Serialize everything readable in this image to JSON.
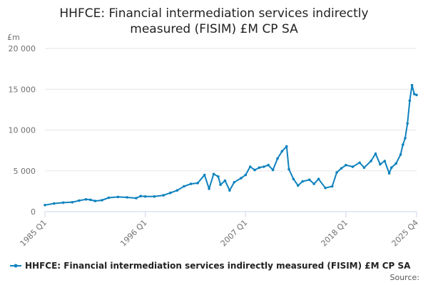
{
  "chart_data": {
    "type": "line",
    "title_line1": "HHFCE: Financial intermediation services indirectly",
    "title_line2": "measured (FISIM) £M CP SA",
    "ylabel": "£m",
    "ylim": [
      0,
      20000
    ],
    "yticks": [
      0,
      5000,
      10000,
      15000,
      20000
    ],
    "ytick_labels": [
      "0",
      "5 000",
      "10 000",
      "15 000",
      "20 000"
    ],
    "xrange": [
      "1985 Q1",
      "2025 Q4"
    ],
    "xticks": [
      "1985 Q1",
      "1996 Q1",
      "2007 Q1",
      "2018 Q1",
      "2025 Q4"
    ],
    "grid": true,
    "legend_position": "bottom",
    "color": "#0f82be",
    "source_label": "Source:",
    "series": [
      {
        "name": "HHFCE: Financial intermediation services indirectly measured (FISIM) £M CP SA",
        "points": [
          [
            "1985 Q1",
            800
          ],
          [
            "1986 Q1",
            1000
          ],
          [
            "1987 Q1",
            1100
          ],
          [
            "1988 Q1",
            1150
          ],
          [
            "1988 Q4",
            1350
          ],
          [
            "1989 Q3",
            1500
          ],
          [
            "1990 Q1",
            1450
          ],
          [
            "1990 Q3",
            1300
          ],
          [
            "1991 Q2",
            1400
          ],
          [
            "1992 Q1",
            1700
          ],
          [
            "1993 Q1",
            1800
          ],
          [
            "1994 Q1",
            1750
          ],
          [
            "1995 Q1",
            1650
          ],
          [
            "1995 Q3",
            1900
          ],
          [
            "1996 Q1",
            1850
          ],
          [
            "1997 Q1",
            1850
          ],
          [
            "1998 Q1",
            2000
          ],
          [
            "1998 Q4",
            2300
          ],
          [
            "1999 Q3",
            2600
          ],
          [
            "2000 Q2",
            3100
          ],
          [
            "2001 Q1",
            3400
          ],
          [
            "2001 Q4",
            3500
          ],
          [
            "2002 Q3",
            4500
          ],
          [
            "2003 Q1",
            2800
          ],
          [
            "2003 Q3",
            4600
          ],
          [
            "2004 Q1",
            4300
          ],
          [
            "2004 Q2",
            3300
          ],
          [
            "2004 Q4",
            3800
          ],
          [
            "2005 Q2",
            2600
          ],
          [
            "2005 Q4",
            3600
          ],
          [
            "2006 Q3",
            4100
          ],
          [
            "2007 Q1",
            4500
          ],
          [
            "2007 Q3",
            5500
          ],
          [
            "2008 Q1",
            5100
          ],
          [
            "2008 Q3",
            5400
          ],
          [
            "2009 Q1",
            5500
          ],
          [
            "2009 Q3",
            5700
          ],
          [
            "2010 Q1",
            5100
          ],
          [
            "2010 Q3",
            6500
          ],
          [
            "2011 Q1",
            7400
          ],
          [
            "2011 Q3",
            8000
          ],
          [
            "2011 Q4",
            5200
          ],
          [
            "2012 Q2",
            4000
          ],
          [
            "2012 Q4",
            3200
          ],
          [
            "2013 Q2",
            3700
          ],
          [
            "2014 Q1",
            3900
          ],
          [
            "2014 Q3",
            3400
          ],
          [
            "2015 Q1",
            4000
          ],
          [
            "2015 Q4",
            2900
          ],
          [
            "2016 Q3",
            3100
          ],
          [
            "2017 Q1",
            4800
          ],
          [
            "2017 Q3",
            5300
          ],
          [
            "2018 Q1",
            5700
          ],
          [
            "2018 Q4",
            5500
          ],
          [
            "2019 Q3",
            6000
          ],
          [
            "2020 Q1",
            5400
          ],
          [
            "2020 Q4",
            6200
          ],
          [
            "2021 Q2",
            7100
          ],
          [
            "2021 Q4",
            5800
          ],
          [
            "2022 Q2",
            6200
          ],
          [
            "2022 Q4",
            4700
          ],
          [
            "2023 Q1",
            5400
          ],
          [
            "2023 Q3",
            5900
          ],
          [
            "2024 Q1",
            7000
          ],
          [
            "2024 Q2",
            8200
          ],
          [
            "2024 Q3",
            9000
          ],
          [
            "2024 Q4",
            10800
          ],
          [
            "2025 Q1",
            13600
          ],
          [
            "2025 Q2",
            15500
          ],
          [
            "2025 Q3",
            14400
          ],
          [
            "2025 Q4",
            14300
          ]
        ]
      }
    ]
  }
}
